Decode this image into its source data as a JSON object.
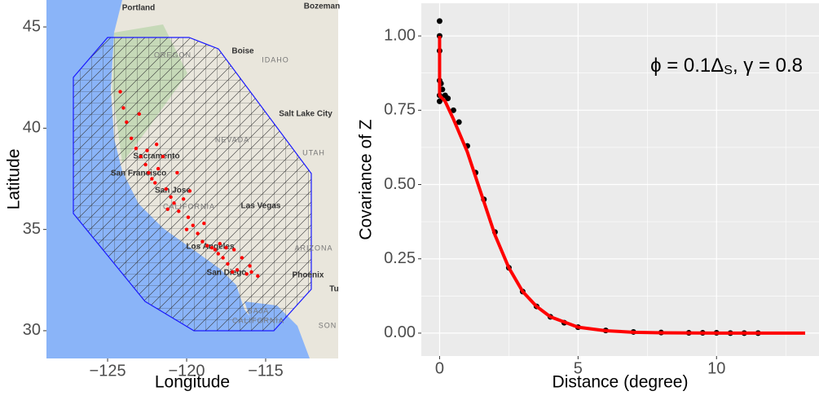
{
  "chart_data": [
    {
      "type": "map",
      "xlabel": "Longitude",
      "ylabel": "Latitude",
      "xlim": [
        -128.87,
        -110.41
      ],
      "ylim": [
        28.63,
        46.33
      ],
      "xticks": [
        {
          "value": -125,
          "label": "−125"
        },
        {
          "value": -120,
          "label": "−120"
        },
        {
          "value": -115,
          "label": "−115"
        }
      ],
      "yticks": [
        30,
        35,
        40,
        45
      ],
      "place_labels": [
        "Portland",
        "Bozeman",
        "OREGON",
        "Boise",
        "IDAHO",
        "Salt Lake City",
        "NEVADA",
        "UTAH",
        "Sacramento",
        "San Francisco",
        "San Jose",
        "CALIFORNIA",
        "Las Vegas",
        "ARIZONA",
        "Los Angeles",
        "San Diego",
        "Phoenix",
        "Tu",
        "BAJA",
        "CALIFORNIA",
        "SON"
      ],
      "series": [
        {
          "color": "#ff0000",
          "x": [
            -124.2,
            -124.0,
            -123.8,
            -123.5,
            -123.2,
            -122.9,
            -122.6,
            -122.4,
            -122.2,
            -122.0,
            -121.8,
            -121.5,
            -121.3,
            -121.0,
            -120.8,
            -120.5,
            -120.2,
            -119.9,
            -119.6,
            -119.3,
            -119.0,
            -118.7,
            -118.4,
            -118.2,
            -118.0,
            -117.7,
            -117.4,
            -117.1,
            -116.8,
            -116.5,
            -116.2,
            -115.9,
            -115.5,
            -121.9,
            -122.5,
            -120.6,
            -119.8,
            -118.9,
            -117.9,
            -117.0,
            -116.0,
            -120.0,
            -121.2,
            -123.0,
            -117.5
          ],
          "y": [
            41.8,
            41.0,
            40.3,
            39.5,
            39.0,
            38.6,
            38.2,
            37.8,
            37.5,
            37.3,
            38.0,
            38.6,
            37.0,
            36.6,
            36.3,
            35.9,
            36.5,
            35.6,
            35.2,
            34.8,
            34.4,
            34.2,
            34.1,
            34.0,
            33.8,
            33.6,
            33.3,
            32.9,
            33.0,
            33.6,
            32.8,
            32.9,
            32.7,
            39.2,
            38.9,
            37.8,
            36.9,
            35.3,
            34.3,
            34.0,
            33.2,
            35.0,
            36.0,
            40.7,
            34.1
          ]
        }
      ]
    },
    {
      "type": "scatter",
      "xlabel": "Distance (degree)",
      "ylabel": "Covariance of Z",
      "annotation": [
        "ϕ = 0.1Δ",
        "S",
        ", γ = 0.8"
      ],
      "xlim": [
        -0.66,
        13.7
      ],
      "ylim": [
        -0.077,
        1.11
      ],
      "xticks": [
        0,
        5,
        10
      ],
      "yticks": [
        {
          "value": 0,
          "label": "0.00"
        },
        {
          "value": 0.25,
          "label": "0.25"
        },
        {
          "value": 0.5,
          "label": "0.50"
        },
        {
          "value": 0.75,
          "label": "0.75"
        },
        {
          "value": 1,
          "label": "1.00"
        }
      ],
      "grid": true,
      "series": [
        {
          "type": "scatter",
          "color": "#000000",
          "x": [
            0,
            0,
            0,
            0,
            0,
            0,
            0.05,
            0.1,
            0.2,
            0.3,
            0.5,
            0.7,
            1,
            1.3,
            1.6,
            2,
            2.5,
            3,
            3.5,
            4,
            4.5,
            5,
            6,
            7,
            8,
            9,
            9.5,
            10,
            10.5,
            11,
            11.5
          ],
          "values": [
            1.05,
            1.0,
            0.95,
            0.85,
            0.8,
            0.78,
            0.84,
            0.82,
            0.8,
            0.79,
            0.75,
            0.71,
            0.63,
            0.54,
            0.45,
            0.34,
            0.22,
            0.14,
            0.09,
            0.055,
            0.035,
            0.02,
            0.009,
            0.004,
            0.002,
            0.001,
            0.001,
            0.001,
            0,
            0,
            0
          ]
        },
        {
          "type": "line",
          "color": "#ff0000",
          "x": [
            0,
            0,
            0.2,
            0.5,
            1,
            1.5,
            2,
            2.5,
            3,
            3.5,
            4,
            5,
            6,
            7,
            8,
            10,
            13.2
          ],
          "values": [
            1.0,
            0.8,
            0.78,
            0.72,
            0.61,
            0.47,
            0.33,
            0.22,
            0.14,
            0.09,
            0.055,
            0.02,
            0.008,
            0.003,
            0.001,
            0,
            0
          ]
        }
      ]
    }
  ]
}
